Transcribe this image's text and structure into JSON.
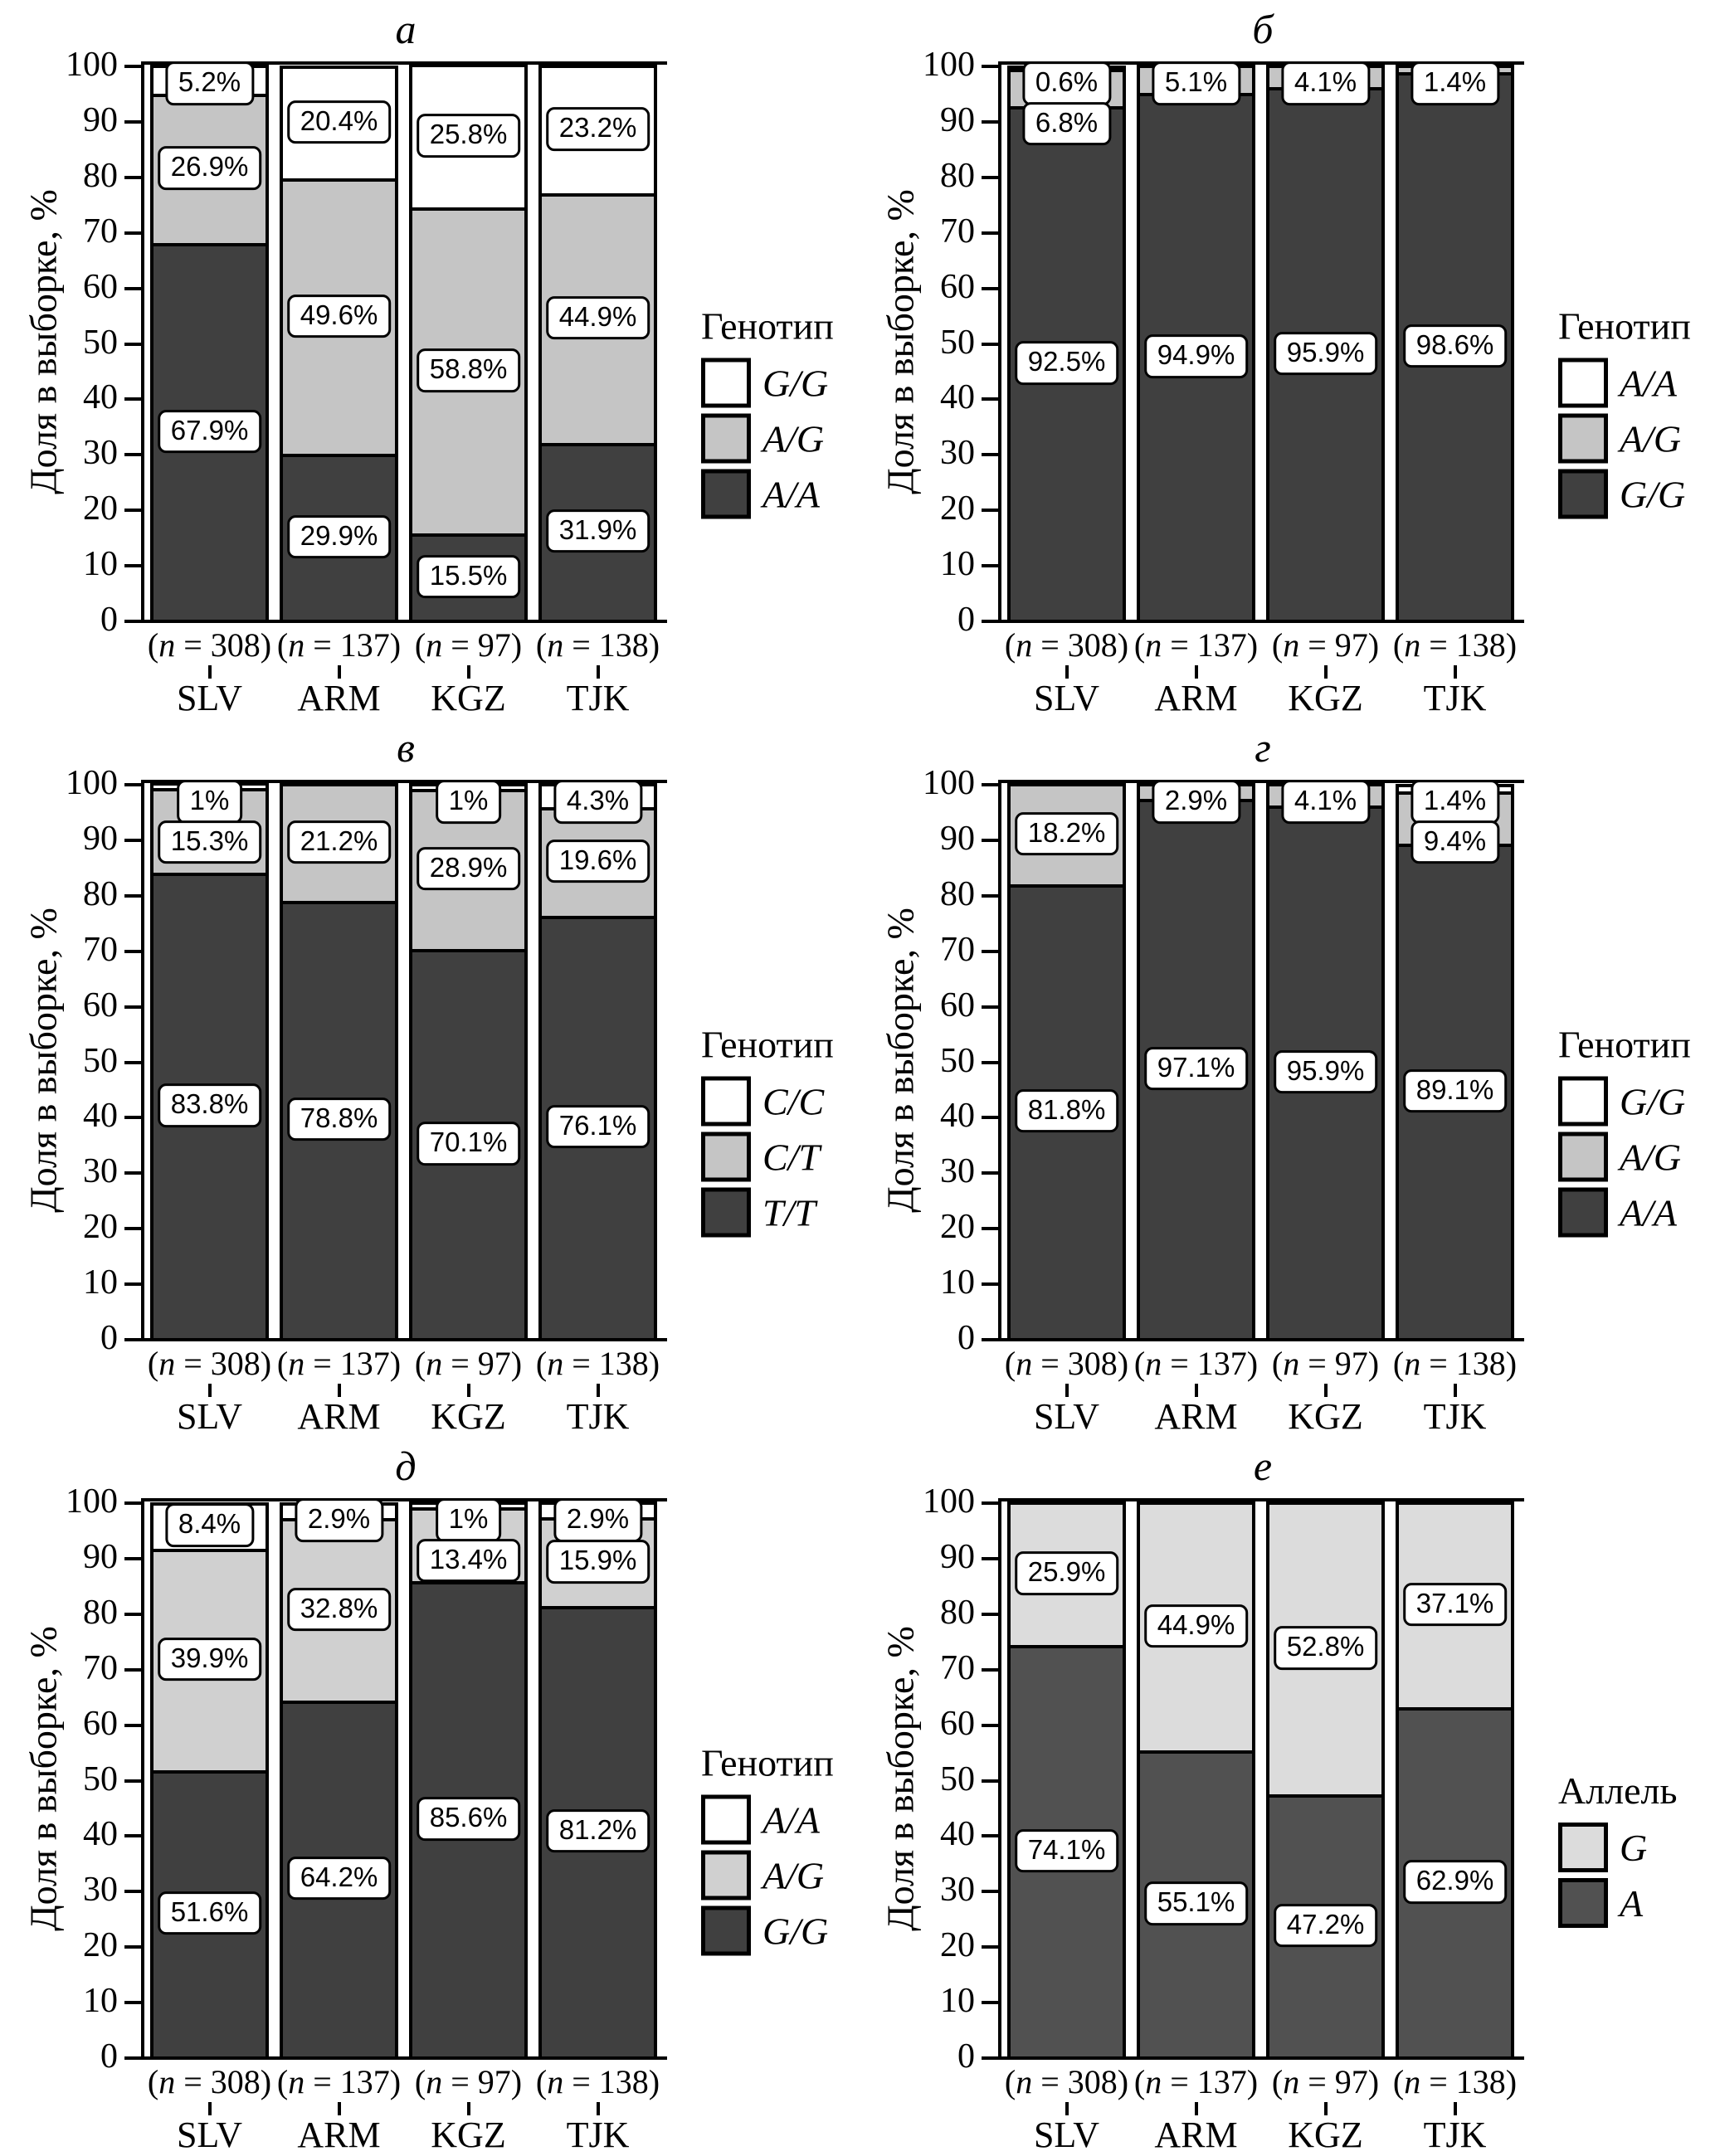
{
  "figure": {
    "y_ticks": [
      0,
      10,
      20,
      30,
      40,
      50,
      60,
      70,
      80,
      90,
      100
    ]
  },
  "chart_data": [
    {
      "panel": "a",
      "type": "bar",
      "stacked": true,
      "title": "а",
      "ylabel": "Доля в выборке, %",
      "ylim": [
        0,
        100
      ],
      "legend_title": "Генотип",
      "legend_position": "right",
      "categories": [
        "SLV",
        "ARM",
        "KGZ",
        "TJK"
      ],
      "sample_sizes": [
        "(n = 308)",
        "(n = 137)",
        "(n = 97)",
        "(n = 138)"
      ],
      "series": [
        {
          "name": "A/A",
          "color": "#404040",
          "values": [
            67.9,
            29.9,
            15.5,
            31.9
          ],
          "labels": [
            "67.9%",
            "29.9%",
            "15.5%",
            "31.9%"
          ]
        },
        {
          "name": "A/G",
          "color": "#c5c5c5",
          "values": [
            26.9,
            49.6,
            58.8,
            44.9
          ],
          "labels": [
            "26.9%",
            "49.6%",
            "58.8%",
            "44.9%"
          ]
        },
        {
          "name": "G/G",
          "color": "#ffffff",
          "values": [
            5.2,
            20.4,
            25.8,
            23.2
          ],
          "labels": [
            "5.2%",
            "20.4%",
            "25.8%",
            "23.2%"
          ]
        }
      ]
    },
    {
      "panel": "b",
      "type": "bar",
      "stacked": true,
      "title": "б",
      "ylabel": "Доля в выборке, %",
      "ylim": [
        0,
        100
      ],
      "legend_title": "Генотип",
      "legend_position": "right",
      "categories": [
        "SLV",
        "ARM",
        "KGZ",
        "TJK"
      ],
      "sample_sizes": [
        "(n = 308)",
        "(n = 137)",
        "(n = 97)",
        "(n = 138)"
      ],
      "series": [
        {
          "name": "G/G",
          "color": "#404040",
          "values": [
            92.5,
            94.9,
            95.9,
            98.6
          ],
          "labels": [
            "92.5%",
            "94.9%",
            "95.9%",
            "98.6%"
          ]
        },
        {
          "name": "A/G",
          "color": "#c5c5c5",
          "values": [
            6.8,
            5.1,
            4.1,
            1.4
          ],
          "labels": [
            "6.8%",
            "5.1%",
            "4.1%",
            "1.4%"
          ]
        },
        {
          "name": "A/A",
          "color": "#ffffff",
          "values": [
            0.6,
            0,
            0,
            0
          ],
          "labels": [
            "0.6%",
            "",
            "",
            ""
          ]
        }
      ]
    },
    {
      "panel": "v",
      "type": "bar",
      "stacked": true,
      "title": "в",
      "ylabel": "Доля в выборке, %",
      "ylim": [
        0,
        100
      ],
      "legend_title": "Генотип",
      "legend_position": "right",
      "categories": [
        "SLV",
        "ARM",
        "KGZ",
        "TJK"
      ],
      "sample_sizes": [
        "(n = 308)",
        "(n = 137)",
        "(n = 97)",
        "(n = 138)"
      ],
      "series": [
        {
          "name": "T/T",
          "color": "#404040",
          "values": [
            83.8,
            78.8,
            70.1,
            76.1
          ],
          "labels": [
            "83.8%",
            "78.8%",
            "70.1%",
            "76.1%"
          ]
        },
        {
          "name": "C/T",
          "color": "#c5c5c5",
          "values": [
            15.3,
            21.2,
            28.9,
            19.6
          ],
          "labels": [
            "15.3%",
            "21.2%",
            "28.9%",
            "19.6%"
          ]
        },
        {
          "name": "C/C",
          "color": "#ffffff",
          "values": [
            1,
            0,
            1,
            4.3
          ],
          "labels": [
            "1%",
            "",
            "1%",
            "4.3%"
          ]
        }
      ]
    },
    {
      "panel": "g",
      "type": "bar",
      "stacked": true,
      "title": "г",
      "ylabel": "Доля в выборке, %",
      "ylim": [
        0,
        100
      ],
      "legend_title": "Генотип",
      "legend_position": "right",
      "categories": [
        "SLV",
        "ARM",
        "KGZ",
        "TJK"
      ],
      "sample_sizes": [
        "(n = 308)",
        "(n = 137)",
        "(n = 97)",
        "(n = 138)"
      ],
      "series": [
        {
          "name": "A/A",
          "color": "#404040",
          "values": [
            81.8,
            97.1,
            95.9,
            89.1
          ],
          "labels": [
            "81.8%",
            "97.1%",
            "95.9%",
            "89.1%"
          ]
        },
        {
          "name": "A/G",
          "color": "#c5c5c5",
          "values": [
            18.2,
            2.9,
            4.1,
            9.4
          ],
          "labels": [
            "18.2%",
            "2.9%",
            "4.1%",
            "9.4%"
          ]
        },
        {
          "name": "G/G",
          "color": "#ffffff",
          "values": [
            0,
            0,
            0,
            1.4
          ],
          "labels": [
            "",
            "",
            "",
            "1.4%"
          ]
        }
      ]
    },
    {
      "panel": "d",
      "type": "bar",
      "stacked": true,
      "title": "д",
      "ylabel": "Доля в выборке, %",
      "ylim": [
        0,
        100
      ],
      "legend_title": "Генотип",
      "legend_position": "right",
      "categories": [
        "SLV",
        "ARM",
        "KGZ",
        "TJK"
      ],
      "sample_sizes": [
        "(n = 308)",
        "(n = 137)",
        "(n = 97)",
        "(n = 138)"
      ],
      "series": [
        {
          "name": "G/G",
          "color": "#404040",
          "values": [
            51.6,
            64.2,
            85.6,
            81.2
          ],
          "labels": [
            "51.6%",
            "64.2%",
            "85.6%",
            "81.2%"
          ]
        },
        {
          "name": "A/G",
          "color": "#d0d0d0",
          "values": [
            39.9,
            32.8,
            13.4,
            15.9
          ],
          "labels": [
            "39.9%",
            "32.8%",
            "13.4%",
            "15.9%"
          ]
        },
        {
          "name": "A/A",
          "color": "#ffffff",
          "values": [
            8.4,
            2.9,
            1,
            2.9
          ],
          "labels": [
            "8.4%",
            "2.9%",
            "1%",
            "2.9%"
          ]
        }
      ]
    },
    {
      "panel": "e",
      "type": "bar",
      "stacked": true,
      "title": "е",
      "ylabel": "Доля в выборке, %",
      "ylim": [
        0,
        100
      ],
      "legend_title": "Аллель",
      "legend_position": "right",
      "categories": [
        "SLV",
        "ARM",
        "KGZ",
        "TJK"
      ],
      "sample_sizes": [
        "(n = 308)",
        "(n = 137)",
        "(n = 97)",
        "(n = 138)"
      ],
      "series": [
        {
          "name": "A",
          "color": "#515151",
          "values": [
            74.1,
            55.1,
            47.2,
            62.9
          ],
          "labels": [
            "74.1%",
            "55.1%",
            "47.2%",
            "62.9%"
          ]
        },
        {
          "name": "G",
          "color": "#dcdcdc",
          "values": [
            25.9,
            44.9,
            52.8,
            37.1
          ],
          "labels": [
            "25.9%",
            "44.9%",
            "52.8%",
            "37.1%"
          ]
        }
      ]
    }
  ]
}
